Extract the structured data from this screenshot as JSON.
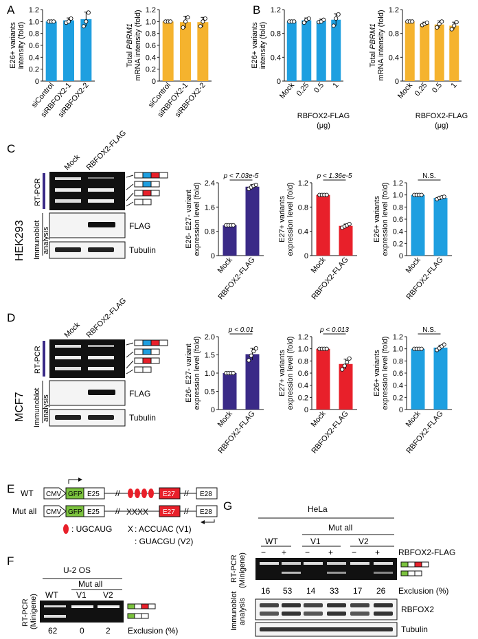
{
  "panels": {
    "A": "A",
    "B": "B",
    "C": "C",
    "D": "D",
    "E": "E",
    "F": "F",
    "G": "G"
  },
  "colors": {
    "blue": "#1e9fe0",
    "orange": "#f5b32e",
    "purple": "#3a2a87",
    "red": "#e8202a",
    "green": "#7bc23e",
    "gel": "#111111"
  },
  "chart_data": [
    {
      "id": "A1",
      "type": "bar",
      "color": "blue",
      "categories": [
        "siControl",
        "siRBFOX2-1",
        "siRBFOX2-2"
      ],
      "values": [
        1.0,
        1.02,
        1.04
      ],
      "err": [
        0.0,
        0.04,
        0.12
      ],
      "points": [
        [
          1,
          1,
          1
        ],
        [
          0.98,
          1.0,
          1.05
        ],
        [
          0.92,
          1.0,
          1.15
        ]
      ],
      "ylabel": [
        "E26+ variants",
        "intensity (fold)"
      ],
      "ylim": [
        0,
        1.2
      ],
      "yticks": [
        "0",
        "0.2",
        "0.4",
        "0.6",
        "0.8",
        "1.0",
        "1.2"
      ]
    },
    {
      "id": "A2",
      "type": "bar",
      "color": "orange",
      "categories": [
        "siControl",
        "siRBFOX2-1",
        "siRBFOX2-2"
      ],
      "values": [
        1.0,
        0.99,
        0.99
      ],
      "err": [
        0.0,
        0.1,
        0.08
      ],
      "points": [
        [
          1,
          1,
          1
        ],
        [
          0.9,
          1.0,
          1.07
        ],
        [
          0.92,
          1.0,
          1.05
        ]
      ],
      "ylabel": [
        "Total PBRM1",
        "mRNA intensity (fold)"
      ],
      "ylim": [
        0,
        1.2
      ],
      "yticks": [
        "0",
        "0.2",
        "0.4",
        "0.6",
        "0.8",
        "1.0",
        "1.2"
      ]
    },
    {
      "id": "B1",
      "type": "bar",
      "color": "blue",
      "categories": [
        "Mock",
        "0.25",
        "0.5",
        "1"
      ],
      "values": [
        1.0,
        1.02,
        1.01,
        1.03
      ],
      "err": [
        0.0,
        0.04,
        0.03,
        0.1
      ],
      "points": [
        [
          1,
          1,
          1
        ],
        [
          0.98,
          1.03,
          1.05
        ],
        [
          0.99,
          1.0,
          1.03
        ],
        [
          0.93,
          1.05,
          1.12
        ]
      ],
      "ylabel": [
        "E26+ variants",
        "intensity (fold)"
      ],
      "ylim": [
        0,
        1.2
      ],
      "yticks": [
        "0",
        "0.4",
        "0.8",
        "1.2"
      ],
      "xlabel": [
        "RBFOX2-FLAG",
        "(μg)"
      ]
    },
    {
      "id": "B2",
      "type": "bar",
      "color": "orange",
      "categories": [
        "Mock",
        "0.25",
        "0.5",
        "1"
      ],
      "values": [
        1.0,
        0.96,
        0.95,
        0.93
      ],
      "err": [
        0.0,
        0.03,
        0.06,
        0.06
      ],
      "points": [
        [
          1,
          1,
          1
        ],
        [
          0.94,
          0.96,
          0.98
        ],
        [
          0.9,
          0.96,
          1.0
        ],
        [
          0.87,
          0.93,
          0.99
        ]
      ],
      "ylabel": [
        "Total PBRM1",
        "mRNA intensity (fold)"
      ],
      "ylim": [
        0,
        1.2
      ],
      "yticks": [
        "0",
        "0.4",
        "0.8",
        "1.2"
      ],
      "xlabel": [
        "RBFOX2-FLAG",
        "(μg)"
      ]
    },
    {
      "id": "C1",
      "type": "bar",
      "color": "purple",
      "categories": [
        "Mock",
        "RBFOX2-FLAG"
      ],
      "values": [
        1.0,
        2.27
      ],
      "err": [
        0.02,
        0.07
      ],
      "points": [
        [
          1,
          1,
          1,
          1
        ],
        [
          2.2,
          2.25,
          2.3,
          2.33
        ]
      ],
      "ylabel": [
        "E26- E27- variant",
        "expression level (fold)"
      ],
      "ylim": [
        0,
        2.4
      ],
      "yticks": [
        "0",
        "0.8",
        "1.6",
        "2.4"
      ],
      "pval": "p < 7.03e-5"
    },
    {
      "id": "C2",
      "type": "bar",
      "color": "red",
      "categories": [
        "Mock",
        "RBFOX2-FLAG"
      ],
      "values": [
        1.0,
        0.49
      ],
      "err": [
        0.01,
        0.03
      ],
      "points": [
        [
          1,
          1,
          1,
          1
        ],
        [
          0.46,
          0.48,
          0.5,
          0.52
        ]
      ],
      "ylabel": [
        "E27+ variants",
        "expression level (fold)"
      ],
      "ylim": [
        0,
        1.2
      ],
      "yticks": [
        "0",
        "0.4",
        "0.8",
        "1.2"
      ],
      "pval": "p < 1.36e-5"
    },
    {
      "id": "C3",
      "type": "bar",
      "color": "blue",
      "categories": [
        "Mock",
        "RBFOX2-FLAG"
      ],
      "values": [
        1.0,
        0.95
      ],
      "err": [
        0.01,
        0.03
      ],
      "points": [
        [
          1,
          1,
          1,
          1
        ],
        [
          0.93,
          0.95,
          0.96,
          0.97
        ]
      ],
      "ylabel": [
        "E26+ variants",
        "expression level (fold)"
      ],
      "ylim": [
        0,
        1.2
      ],
      "yticks": [
        "0",
        "0.2",
        "0.4",
        "0.6",
        "0.8",
        "1.0",
        "1.2"
      ],
      "pval": "N.S."
    },
    {
      "id": "D1",
      "type": "bar",
      "color": "purple",
      "categories": [
        "Mock",
        "RBFOX2-FLAG"
      ],
      "values": [
        1.0,
        1.52
      ],
      "err": [
        0.01,
        0.16
      ],
      "points": [
        [
          1,
          1,
          1,
          1
        ],
        [
          1.35,
          1.48,
          1.6,
          1.68
        ]
      ],
      "ylabel": [
        "E26- E27- variant",
        "expression level (fold)"
      ],
      "ylim": [
        0,
        2.0
      ],
      "yticks": [
        "0",
        "0.5",
        "1.0",
        "1.5",
        "2.0"
      ],
      "pval": "p < 0.01"
    },
    {
      "id": "D2",
      "type": "bar",
      "color": "red",
      "categories": [
        "Mock",
        "RBFOX2-FLAG"
      ],
      "values": [
        1.0,
        0.75
      ],
      "err": [
        0.01,
        0.08
      ],
      "points": [
        [
          1,
          1,
          1,
          1
        ],
        [
          0.66,
          0.72,
          0.78,
          0.84
        ]
      ],
      "ylabel": [
        "E27+ variants",
        "expression level (fold)"
      ],
      "ylim": [
        0,
        1.2
      ],
      "yticks": [
        "0",
        "0.2",
        "0.4",
        "0.6",
        "0.8",
        "1.0",
        "1.2"
      ],
      "pval": "p < 0.013"
    },
    {
      "id": "D3",
      "type": "bar",
      "color": "blue",
      "categories": [
        "Mock",
        "RBFOX2-FLAG"
      ],
      "values": [
        1.0,
        1.02
      ],
      "err": [
        0.01,
        0.04
      ],
      "points": [
        [
          1,
          1,
          1,
          1
        ],
        [
          0.98,
          1.01,
          1.04,
          1.07
        ]
      ],
      "ylabel": [
        "E26+ variants",
        "expression level (fold)"
      ],
      "ylim": [
        0,
        1.2
      ],
      "yticks": [
        "0",
        "0.2",
        "0.4",
        "0.6",
        "0.8",
        "1.0",
        "1.2"
      ],
      "pval": "N.S."
    }
  ],
  "blots": {
    "cols": [
      "Mock",
      "RBFOX2-FLAG"
    ],
    "rtpcr": "RT-PCR",
    "immuno": [
      "Immunoblot",
      "analysis"
    ],
    "flag": "FLAG",
    "tubulin": "Tubulin",
    "cellC": "HEK293",
    "cellD": "MCF7"
  },
  "panelE": {
    "wt": "WT",
    "mutall": "Mut all",
    "cmv": "CMV",
    "gfp": "GFP",
    "e25": "E25",
    "e27": "E27",
    "e28": "E28",
    "legend_motif": ": UGCAUG",
    "legend_v1": ": ACCUAC (V1)",
    "legend_v2": ": GUACGU (V2)"
  },
  "panelF": {
    "title": "U-2 OS",
    "mutall": "Mut all",
    "lanes": [
      "WT",
      "V1",
      "V2"
    ],
    "values": [
      "62",
      "0",
      "2"
    ],
    "exclusion": "Exclusion (%)",
    "rtpcr": [
      "RT-PCR",
      "(Minigene)"
    ]
  },
  "panelG": {
    "title": "HeLa",
    "mutall": "Mut all",
    "groups": [
      "WT",
      "V1",
      "V2"
    ],
    "signs": [
      "−",
      "+",
      "−",
      "+",
      "−",
      "+"
    ],
    "rbfox": "RBFOX2-FLAG",
    "values": [
      "16",
      "53",
      "14",
      "33",
      "17",
      "26"
    ],
    "exclusion": "Exclusion (%)",
    "rtpcr": [
      "RT-PCR",
      "(Minigene)"
    ],
    "immuno": [
      "Immunoblot",
      "analysis"
    ],
    "rbfox2": "RBFOX2",
    "tubulin": "Tubulin"
  }
}
